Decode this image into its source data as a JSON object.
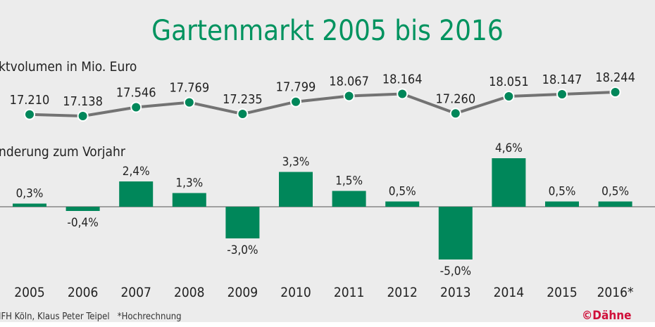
{
  "chart_data": [
    {
      "type": "line",
      "title": "Gartenmarkt 2005 bis 2016",
      "subtitle": "ktvolumen in Mio. Euro",
      "categories": [
        "2005",
        "2006",
        "2007",
        "2008",
        "2009",
        "2010",
        "2011",
        "2012",
        "2013",
        "2014",
        "2015",
        "2016*"
      ],
      "values": [
        17210,
        17138,
        17546,
        17769,
        17235,
        17799,
        18067,
        18164,
        17260,
        18051,
        18147,
        18244
      ],
      "labels": [
        "17.210",
        "17.138",
        "17.546",
        "17.769",
        "17.235",
        "17.799",
        "18.067",
        "18.164",
        "17.260",
        "18.051",
        "18.147",
        "18.244"
      ],
      "line_color": "#737373",
      "marker_color": "#00875a"
    },
    {
      "type": "bar",
      "subtitle": "nderung zum Vorjahr",
      "categories": [
        "2005",
        "2006",
        "2007",
        "2008",
        "2009",
        "2010",
        "2011",
        "2012",
        "2013",
        "2014",
        "2015",
        "2016*"
      ],
      "values": [
        0.3,
        -0.4,
        2.4,
        1.3,
        -3.0,
        3.3,
        1.5,
        0.5,
        -5.0,
        4.6,
        0.5,
        0.5
      ],
      "labels": [
        "0,3%",
        "-0,4%",
        "2,4%",
        "1,3%",
        "-3,0%",
        "3,3%",
        "1,5%",
        "0,5%",
        "-5,0%",
        "4,6%",
        "0,5%",
        "0,5%"
      ],
      "bar_color": "#00875a"
    }
  ],
  "footer": {
    "source": "IFH Köln, Klaus Peter Teipel   *Hochrechnung",
    "copyright": "©Dähne"
  },
  "colors": {
    "title": "#00935f",
    "brand": "#d0103a",
    "background": "#ececec"
  }
}
